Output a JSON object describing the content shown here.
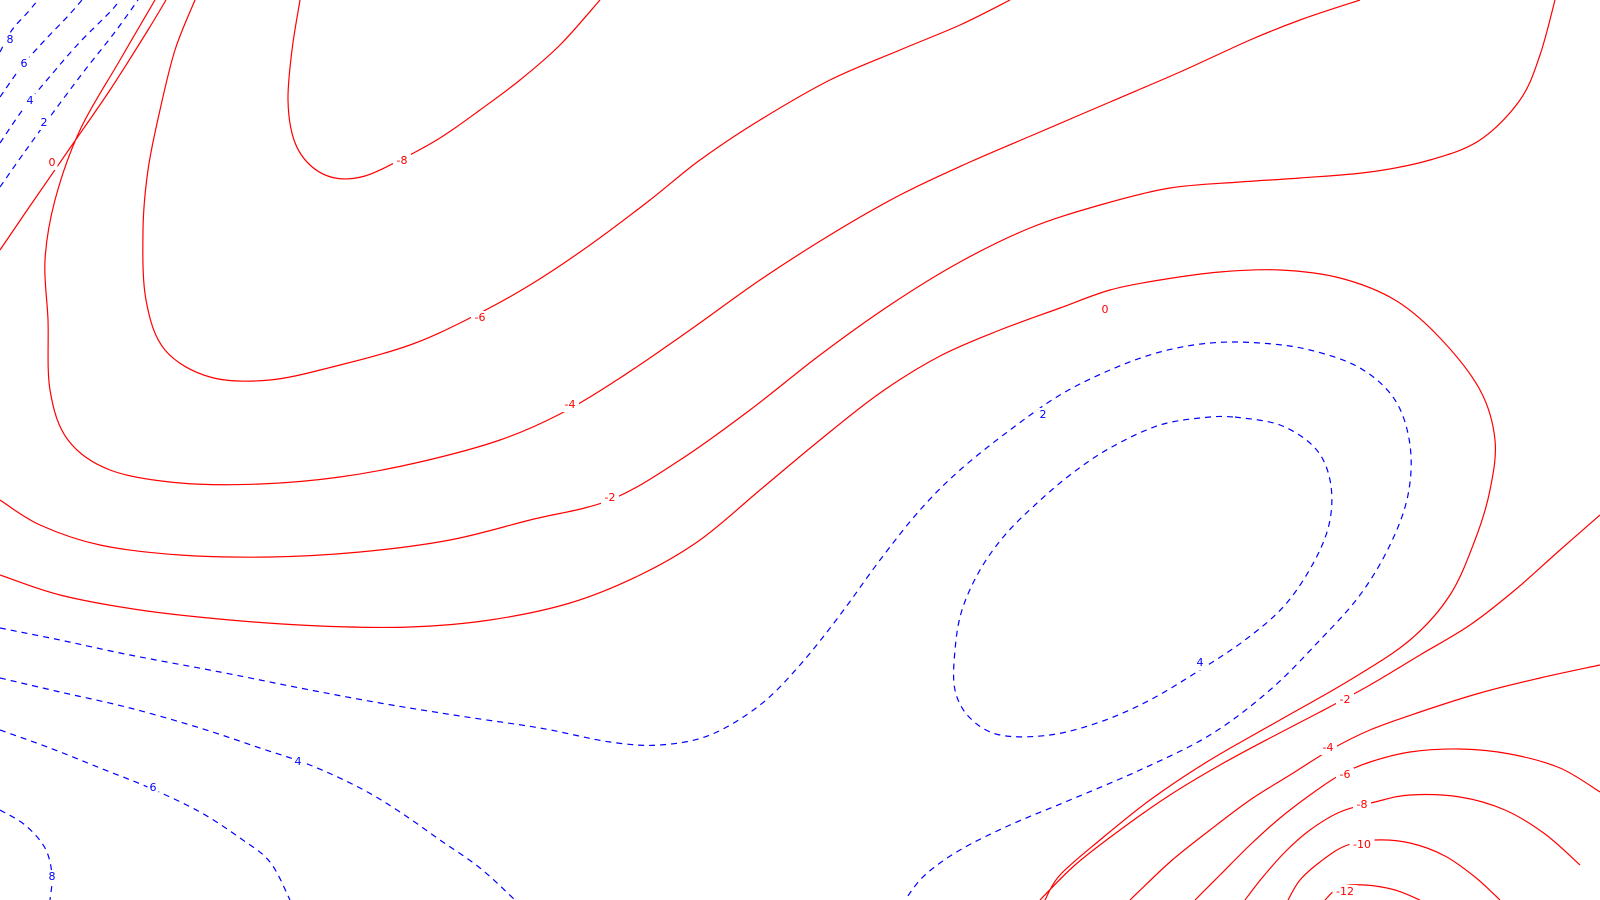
{
  "chart_data": {
    "type": "contour",
    "title": "",
    "xlabel": "",
    "ylabel": "",
    "axes_visible": false,
    "grid": false,
    "legend": "none",
    "colors": {
      "positive_levels": "#ff0000",
      "negative_levels": "#0000ff"
    },
    "line_styles": {
      "positive_levels": "solid",
      "negative_levels": "dashed"
    },
    "levels_shown": [
      -12,
      -10,
      -8,
      -6,
      -4,
      -2,
      0,
      2,
      4,
      6,
      8
    ],
    "contours": [
      {
        "id": "c-left-8-top",
        "level": 8,
        "sign": "negative"
      },
      {
        "id": "c-left-6-top",
        "level": 6,
        "sign": "negative"
      },
      {
        "id": "c-left-4-top",
        "level": 4,
        "sign": "negative"
      },
      {
        "id": "c-left-2-top",
        "level": 2,
        "sign": "negative"
      },
      {
        "id": "c-left-0-top",
        "level": 0,
        "sign": "positive"
      },
      {
        "id": "c-m8-upper",
        "level": -8,
        "sign": "positive"
      },
      {
        "id": "c-m6",
        "level": -6,
        "sign": "positive"
      },
      {
        "id": "c-m4",
        "level": -4,
        "sign": "positive"
      },
      {
        "id": "c-m2",
        "level": -2,
        "sign": "positive"
      },
      {
        "id": "c-0-mid",
        "level": 0,
        "sign": "positive"
      },
      {
        "id": "c-2-mid",
        "level": 2,
        "sign": "negative"
      },
      {
        "id": "c-4-mid",
        "level": 4,
        "sign": "negative"
      },
      {
        "id": "c-2-bottom",
        "level": 2,
        "sign": "negative"
      },
      {
        "id": "c-4-bottom",
        "level": 4,
        "sign": "negative"
      },
      {
        "id": "c-6-bottom",
        "level": 6,
        "sign": "negative"
      },
      {
        "id": "c-8-bottom",
        "level": 8,
        "sign": "negative"
      },
      {
        "id": "c-m2-br",
        "level": -2,
        "sign": "positive"
      },
      {
        "id": "c-m4-br",
        "level": -4,
        "sign": "positive"
      },
      {
        "id": "c-m6-br",
        "level": -6,
        "sign": "positive"
      },
      {
        "id": "c-m8-br",
        "level": -8,
        "sign": "positive"
      },
      {
        "id": "c-m10-br",
        "level": -10,
        "sign": "positive"
      },
      {
        "id": "c-m12-br",
        "level": -12,
        "sign": "positive"
      }
    ],
    "labels": [
      {
        "contour": "c-left-8-top",
        "text": "8"
      },
      {
        "contour": "c-left-6-top",
        "text": "6"
      },
      {
        "contour": "c-left-4-top",
        "text": "4"
      },
      {
        "contour": "c-left-2-top",
        "text": "2"
      },
      {
        "contour": "c-left-0-top",
        "text": "0"
      },
      {
        "contour": "c-m8-upper",
        "text": "-8"
      },
      {
        "contour": "c-m6",
        "text": "-6"
      },
      {
        "contour": "c-m4",
        "text": "-4"
      },
      {
        "contour": "c-m2",
        "text": "-2"
      },
      {
        "contour": "c-0-mid",
        "text": "0"
      },
      {
        "contour": "c-2-mid",
        "text": "2"
      },
      {
        "contour": "c-4-mid",
        "text": "4"
      },
      {
        "contour": "c-4-bottom",
        "text": "4"
      },
      {
        "contour": "c-6-bottom",
        "text": "6"
      },
      {
        "contour": "c-8-bottom",
        "text": "8"
      },
      {
        "contour": "c-m2-br",
        "text": "-2"
      },
      {
        "contour": "c-m4-br",
        "text": "-4"
      },
      {
        "contour": "c-m6-br",
        "text": "-6"
      },
      {
        "contour": "c-m8-br",
        "text": "-8"
      },
      {
        "contour": "c-m10-br",
        "text": "-10"
      },
      {
        "contour": "c-m12-br",
        "text": "-12"
      }
    ]
  }
}
